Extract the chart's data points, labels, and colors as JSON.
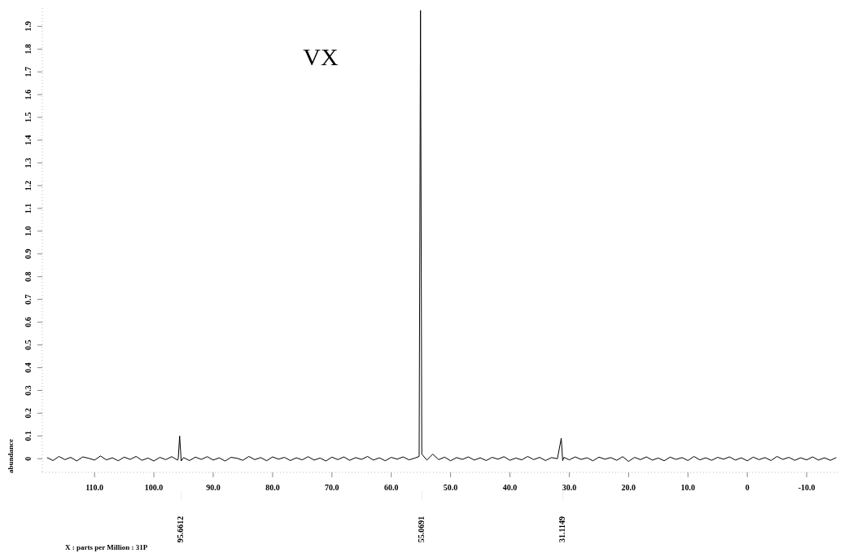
{
  "chart_data": {
    "type": "line",
    "title": "VX",
    "ylabel": "abundance",
    "annotations": [
      "X : parts per Million : 31P",
      "95.6612",
      "55.0691",
      "31.1149"
    ],
    "xlim": [
      118.8,
      -15.2
    ],
    "xticks": [
      {
        "value": 110,
        "label": "110.0"
      },
      {
        "value": 100,
        "label": "100.0"
      },
      {
        "value": 90,
        "label": "90.0"
      },
      {
        "value": 80,
        "label": "80.0"
      },
      {
        "value": 70,
        "label": "70.0"
      },
      {
        "value": 60,
        "label": "60.0"
      },
      {
        "value": 50,
        "label": "50.0"
      },
      {
        "value": 40,
        "label": "40.0"
      },
      {
        "value": 30,
        "label": "30.0"
      },
      {
        "value": 20,
        "label": "20.0"
      },
      {
        "value": 10,
        "label": "10.0"
      },
      0,
      {
        "value": -10,
        "label": "-10.0"
      }
    ],
    "ylim": [
      -0.06,
      1.98
    ],
    "yticks": [
      0,
      0.1,
      0.2,
      0.3,
      0.4,
      0.5,
      0.6,
      0.7,
      0.8,
      0.9,
      {
        "value": 1,
        "label": "1.0"
      },
      1.1,
      1.2,
      1.3,
      1.4,
      1.5,
      1.6,
      1.7,
      1.8,
      1.9
    ],
    "grid": false,
    "marker": "none",
    "line_style": "solid",
    "series": [
      {
        "color": "#000000",
        "x": [
          118,
          117,
          116,
          115,
          114,
          113,
          112,
          111,
          110,
          109,
          108,
          107,
          106,
          105,
          104,
          103,
          102,
          101,
          100,
          99,
          98,
          97,
          96,
          95.9,
          95.6612,
          95.4,
          95,
          94,
          93,
          92,
          91,
          90,
          89,
          88,
          87,
          86,
          85,
          84,
          83,
          82,
          81,
          80,
          79,
          78,
          77,
          76,
          75,
          74,
          73,
          72,
          71,
          70,
          69,
          68,
          67,
          66,
          65,
          64,
          63,
          62,
          61,
          60,
          59,
          58,
          57,
          56,
          55.3,
          55.0691,
          54.85,
          54,
          53,
          52,
          51,
          50,
          49,
          48,
          47,
          46,
          45,
          44,
          43,
          42,
          41,
          40,
          39,
          38,
          37,
          36,
          35,
          34,
          33,
          32,
          31.35,
          31.1149,
          30.9,
          30,
          29,
          28,
          27,
          26,
          25,
          24,
          23,
          22,
          21,
          20,
          19,
          18,
          17,
          16,
          15,
          14,
          13,
          12,
          11,
          10,
          9,
          8,
          7,
          6,
          5,
          4,
          3,
          2,
          1,
          0,
          -1,
          -2,
          -3,
          -4,
          -5,
          -6,
          -7,
          -8,
          -9,
          -10,
          -11,
          -12,
          -13,
          -14,
          -15
        ],
        "values": [
          0.005,
          -0.008,
          0.01,
          -0.004,
          0.006,
          -0.01,
          0.008,
          0.002,
          -0.006,
          0.012,
          -0.005,
          0.004,
          -0.009,
          0.007,
          -0.003,
          0.01,
          -0.007,
          0.003,
          -0.01,
          0.006,
          -0.004,
          0.009,
          -0.006,
          0.0,
          0.1,
          -0.01,
          0.005,
          -0.008,
          0.007,
          -0.003,
          0.009,
          -0.006,
          0.004,
          -0.01,
          0.006,
          0.002,
          -0.007,
          0.01,
          -0.004,
          0.005,
          -0.009,
          0.008,
          -0.002,
          0.006,
          -0.008,
          0.004,
          -0.005,
          0.009,
          -0.006,
          0.003,
          -0.01,
          0.007,
          -0.004,
          0.008,
          -0.007,
          0.005,
          -0.003,
          0.01,
          -0.006,
          0.004,
          -0.009,
          0.006,
          -0.002,
          0.008,
          -0.005,
          0.003,
          0.01,
          1.97,
          0.02,
          -0.006,
          0.02,
          -0.004,
          0.007,
          -0.009,
          0.005,
          -0.003,
          0.008,
          -0.006,
          0.004,
          -0.008,
          0.006,
          -0.002,
          0.009,
          -0.007,
          0.003,
          -0.005,
          0.01,
          -0.004,
          0.006,
          -0.008,
          0.005,
          0.0,
          0.09,
          -0.008,
          0.006,
          -0.005,
          0.008,
          -0.003,
          0.004,
          -0.009,
          0.007,
          -0.002,
          0.005,
          -0.007,
          0.009,
          -0.012,
          0.006,
          -0.004,
          0.008,
          -0.006,
          0.003,
          -0.009,
          0.007,
          -0.003,
          0.005,
          -0.008,
          0.01,
          -0.005,
          0.004,
          -0.007,
          0.006,
          -0.002,
          0.008,
          -0.006,
          0.004,
          -0.009,
          0.007,
          -0.004,
          0.005,
          -0.008,
          0.01,
          -0.003,
          0.006,
          -0.007,
          0.004,
          -0.005,
          0.008,
          -0.006,
          0.004,
          -0.007,
          0.005
        ]
      }
    ]
  }
}
